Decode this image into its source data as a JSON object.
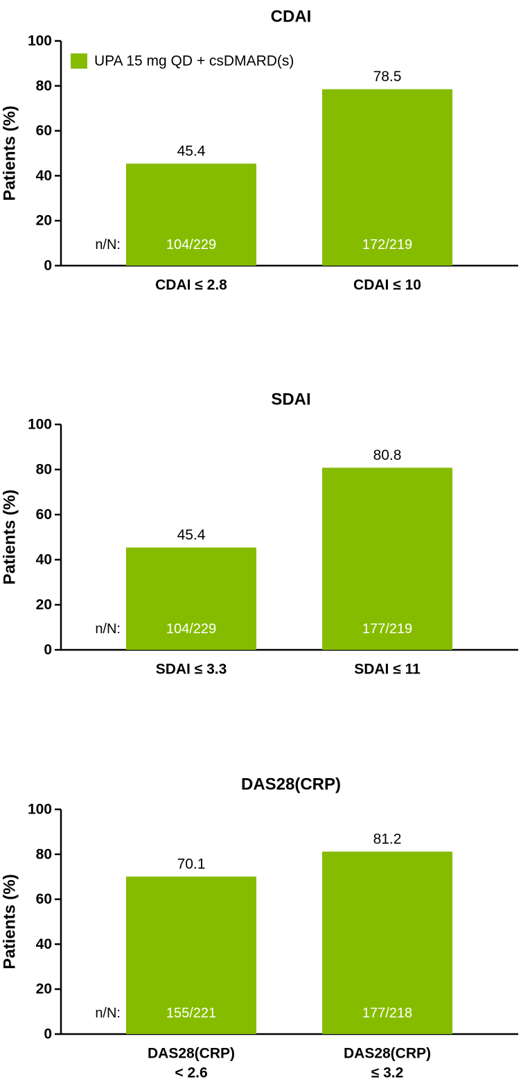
{
  "legend": {
    "label": "UPA 15 mg QD + csDMARD(s)",
    "color": "#86bc00"
  },
  "nn_prefix": "n/N:",
  "chart_data": [
    {
      "type": "bar",
      "title": "CDAI",
      "ylabel": "Patients (%)",
      "xlabel": "",
      "ylim": [
        0,
        100
      ],
      "yticks": [
        0,
        20,
        40,
        60,
        80,
        100
      ],
      "grid": false,
      "legend_position": "top-left",
      "categories": [
        [
          "CDAI ≤ 2.8"
        ],
        [
          "CDAI ≤ 10"
        ]
      ],
      "series": [
        {
          "name": "UPA 15 mg QD + csDMARD(s)",
          "values": [
            45.4,
            78.5
          ],
          "value_labels": [
            "45.4",
            "78.5"
          ],
          "n_over_N": [
            "104/229",
            "172/219"
          ]
        }
      ]
    },
    {
      "type": "bar",
      "title": "SDAI",
      "ylabel": "Patients (%)",
      "xlabel": "",
      "ylim": [
        0,
        100
      ],
      "yticks": [
        0,
        20,
        40,
        60,
        80,
        100
      ],
      "grid": false,
      "categories": [
        [
          "SDAI ≤ 3.3"
        ],
        [
          "SDAI ≤ 11"
        ]
      ],
      "series": [
        {
          "name": "UPA 15 mg QD + csDMARD(s)",
          "values": [
            45.4,
            80.8
          ],
          "value_labels": [
            "45.4",
            "80.8"
          ],
          "n_over_N": [
            "104/229",
            "177/219"
          ]
        }
      ]
    },
    {
      "type": "bar",
      "title": "DAS28(CRP)",
      "ylabel": "Patients (%)",
      "xlabel": "",
      "ylim": [
        0,
        100
      ],
      "yticks": [
        0,
        20,
        40,
        60,
        80,
        100
      ],
      "grid": false,
      "categories": [
        [
          "DAS28(CRP)",
          "< 2.6"
        ],
        [
          "DAS28(CRP)",
          "≤ 3.2"
        ]
      ],
      "series": [
        {
          "name": "UPA 15 mg QD + csDMARD(s)",
          "values": [
            70.1,
            81.2
          ],
          "value_labels": [
            "70.1",
            "81.2"
          ],
          "n_over_N": [
            "155/221",
            "177/218"
          ]
        }
      ]
    }
  ]
}
